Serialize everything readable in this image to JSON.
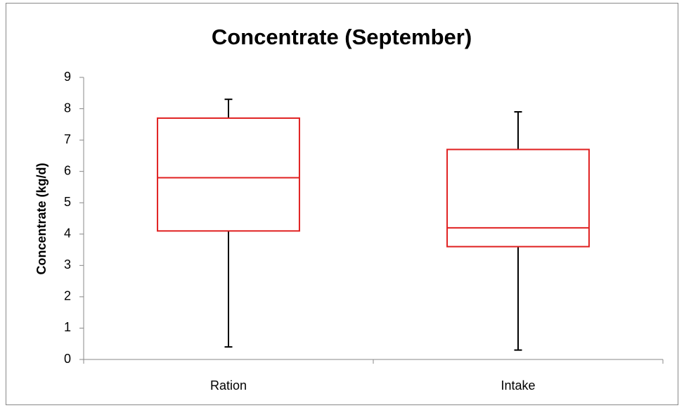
{
  "chart_data": {
    "type": "box",
    "title": "Concentrate (September)",
    "y_label": "Concentrate (kg/d)",
    "categories": [
      "Ration",
      "Intake"
    ],
    "min": [
      0.4,
      0.3
    ],
    "q1": [
      4.1,
      3.6
    ],
    "median": [
      5.8,
      4.2
    ],
    "q3": [
      7.7,
      6.7
    ],
    "max": [
      8.3,
      7.9
    ],
    "box_color": "#e02020",
    "whisker_color": "#000000",
    "ylim": [
      0,
      9
    ],
    "yticks": [
      0,
      1,
      2,
      3,
      4,
      5,
      6,
      7,
      8,
      9
    ],
    "grid": false
  }
}
